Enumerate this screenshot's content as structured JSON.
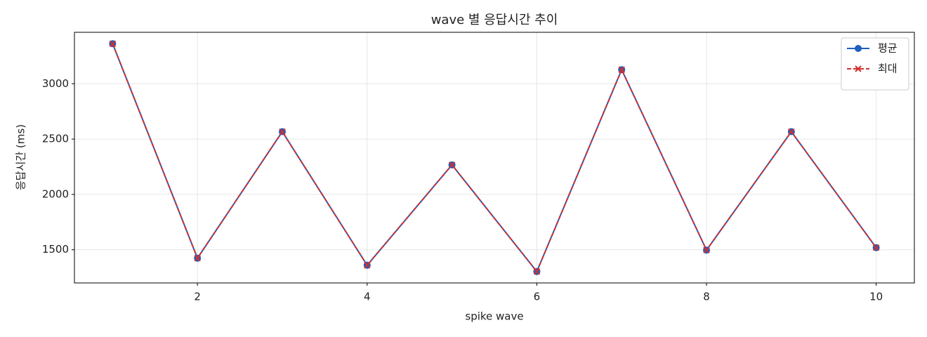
{
  "chart_data": {
    "type": "line",
    "title": "wave 별 응답시간 추이",
    "x_label": "spike wave",
    "y_label": "응답시간 (ms)",
    "x": [
      1,
      2,
      3,
      4,
      5,
      6,
      7,
      8,
      9,
      10
    ],
    "series": [
      {
        "name": "평균",
        "color": "#1f5fbf",
        "marker": "circle",
        "dash": false,
        "values": [
          3362,
          1424,
          2567,
          1360,
          2267,
          1303,
          3127,
          1497,
          2567,
          1519
        ]
      },
      {
        "name": "최대",
        "color": "#d03030",
        "marker": "x",
        "dash": true,
        "values": [
          3362,
          1424,
          2567,
          1360,
          2267,
          1303,
          3127,
          1497,
          2567,
          1519
        ]
      }
    ],
    "xlim": [
      0.55,
      10.45
    ],
    "ylim": [
      1200,
      3465
    ],
    "xticks": [
      2,
      4,
      6,
      8,
      10
    ],
    "yticks": [
      1500,
      2000,
      2500,
      3000
    ],
    "grid": true,
    "legend": "upper right"
  }
}
